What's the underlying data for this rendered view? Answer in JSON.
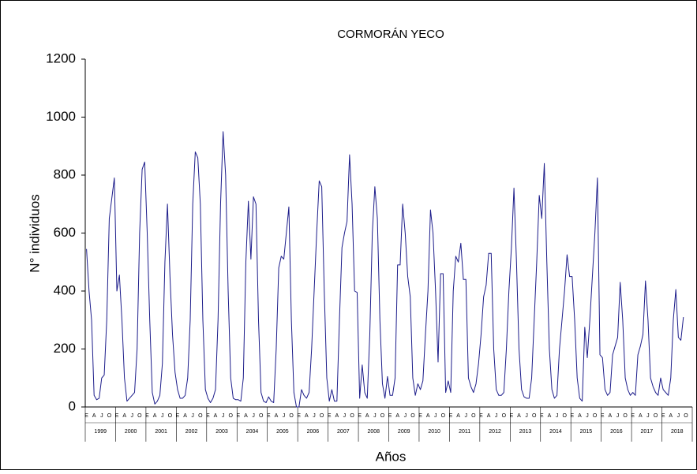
{
  "chart_data": {
    "type": "line",
    "title": "CORMORÁN YECO",
    "y_label": "N° individuos",
    "x_label": "Años",
    "categories": [
      "E",
      null,
      null,
      "A",
      null,
      null,
      "J",
      null,
      null,
      "O",
      null,
      null,
      "E",
      null,
      null,
      "A",
      null,
      null,
      "J",
      null,
      null,
      "O",
      null,
      null,
      "E",
      null,
      null,
      "A",
      null,
      null,
      "J",
      null,
      null,
      "O",
      null,
      null,
      "E",
      null,
      null,
      "A",
      null,
      null,
      "J",
      null,
      null,
      "O",
      null,
      null,
      "E",
      null,
      null,
      "A",
      null,
      null,
      "J",
      null,
      null,
      "O",
      null,
      null,
      "E",
      null,
      null,
      "A",
      null,
      null,
      "J",
      null,
      null,
      "O",
      null,
      null,
      "E",
      null,
      null,
      "A",
      null,
      null,
      "J",
      null,
      null,
      "O",
      null,
      null,
      "E",
      null,
      null,
      "A",
      null,
      null,
      "J",
      null,
      null,
      "O",
      null,
      null,
      "E",
      null,
      null,
      "A",
      null,
      null,
      "J",
      null,
      null,
      "O",
      null,
      null,
      "E",
      null,
      null,
      "A",
      null,
      null,
      "J",
      null,
      null,
      "O",
      null,
      null,
      "E",
      null,
      null,
      "A",
      null,
      null,
      "J",
      null,
      null,
      "O",
      null,
      null,
      "E",
      null,
      null,
      "A",
      null,
      null,
      "J",
      null,
      null,
      "O",
      null,
      null,
      "E",
      null,
      null,
      "A",
      null,
      null,
      "J",
      null,
      null,
      "O",
      null,
      null,
      "E",
      null,
      null,
      "A",
      null,
      null,
      "J",
      null,
      null,
      "O",
      null,
      null,
      "E",
      null,
      null,
      "A",
      null,
      null,
      "J",
      null,
      null,
      "O",
      null,
      null,
      "E",
      null,
      null,
      "A",
      null,
      null,
      "J",
      null,
      null,
      "O",
      null,
      null,
      "E",
      null,
      null,
      "A",
      null,
      null,
      "J",
      null,
      null,
      "O",
      null,
      null,
      "E",
      null,
      null,
      "A",
      null,
      null,
      "J",
      null,
      null,
      "O",
      null,
      null,
      "E",
      null,
      null,
      "A",
      null,
      null,
      "J",
      null,
      null,
      "O",
      null,
      null,
      "E",
      null,
      null,
      "A",
      null,
      null,
      "J",
      null,
      null,
      "O",
      null,
      null
    ],
    "years": [
      "1999",
      "2000",
      "2001",
      "2002",
      "2003",
      "2004",
      "2005",
      "2006",
      "2007",
      "2008",
      "2009",
      "2010",
      "2011",
      "2012",
      "2013",
      "2014",
      "2015",
      "2016",
      "2017",
      "2018"
    ],
    "series": [
      {
        "color": "#1c1c8a",
        "values": [
          545,
          400,
          300,
          40,
          25,
          30,
          100,
          110,
          300,
          650,
          720,
          790,
          400,
          455,
          300,
          100,
          20,
          30,
          40,
          50,
          200,
          600,
          820,
          845,
          600,
          300,
          50,
          10,
          20,
          40,
          150,
          500,
          700,
          450,
          250,
          120,
          60,
          30,
          30,
          40,
          100,
          300,
          700,
          880,
          860,
          700,
          300,
          60,
          30,
          15,
          30,
          60,
          300,
          700,
          950,
          800,
          400,
          100,
          30,
          25,
          25,
          20,
          100,
          500,
          710,
          510,
          725,
          700,
          300,
          50,
          20,
          15,
          35,
          20,
          15,
          200,
          480,
          520,
          510,
          600,
          690,
          300,
          50,
          0,
          0,
          60,
          40,
          30,
          50,
          200,
          400,
          600,
          780,
          760,
          400,
          100,
          20,
          60,
          20,
          20,
          300,
          550,
          600,
          640,
          870,
          700,
          400,
          395,
          30,
          145,
          50,
          30,
          250,
          600,
          760,
          650,
          300,
          80,
          30,
          105,
          40,
          40,
          100,
          490,
          490,
          700,
          600,
          450,
          380,
          100,
          40,
          80,
          60,
          90,
          250,
          400,
          680,
          600,
          400,
          155,
          460,
          460,
          50,
          90,
          50,
          400,
          520,
          500,
          565,
          440,
          440,
          100,
          70,
          50,
          80,
          150,
          250,
          380,
          420,
          530,
          530,
          200,
          60,
          40,
          40,
          50,
          200,
          400,
          550,
          755,
          500,
          200,
          60,
          35,
          30,
          30,
          100,
          300,
          500,
          730,
          650,
          840,
          500,
          200,
          60,
          30,
          40,
          200,
          300,
          400,
          525,
          450,
          450,
          300,
          100,
          30,
          20,
          275,
          170,
          300,
          450,
          600,
          790,
          180,
          170,
          60,
          40,
          50,
          180,
          210,
          240,
          430,
          300,
          100,
          60,
          40,
          50,
          40,
          180,
          210,
          250,
          435,
          300,
          100,
          70,
          50,
          40,
          100,
          60,
          50,
          40,
          100,
          300,
          405,
          240,
          230,
          310,
          null,
          null,
          null
        ]
      }
    ],
    "ylim": [
      0,
      1200
    ],
    "yticks": [
      0,
      200,
      400,
      600,
      800,
      1000,
      1200
    ],
    "grid": false
  }
}
